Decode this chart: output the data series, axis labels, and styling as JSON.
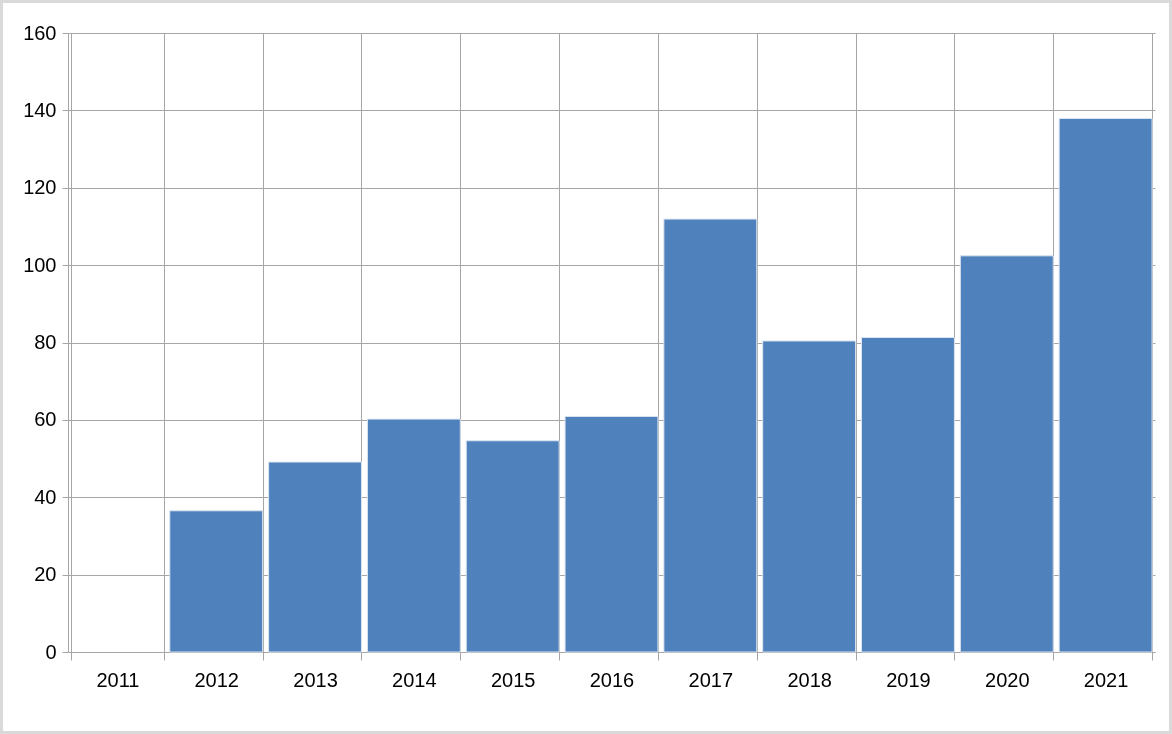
{
  "chart_data": {
    "type": "bar",
    "categories": [
      "2011",
      "2012",
      "2013",
      "2014",
      "2015",
      "2016",
      "2017",
      "2018",
      "2019",
      "2020",
      "2021"
    ],
    "values": [
      null,
      36.5,
      49.1,
      60.2,
      54.6,
      60.9,
      111.9,
      80.4,
      81.3,
      102.4,
      137.9
    ],
    "color": "#4f81bd",
    "ylim": [
      0,
      160
    ],
    "yticks": [
      0,
      20,
      40,
      60,
      80,
      100,
      120,
      140,
      160
    ],
    "grid": true
  }
}
